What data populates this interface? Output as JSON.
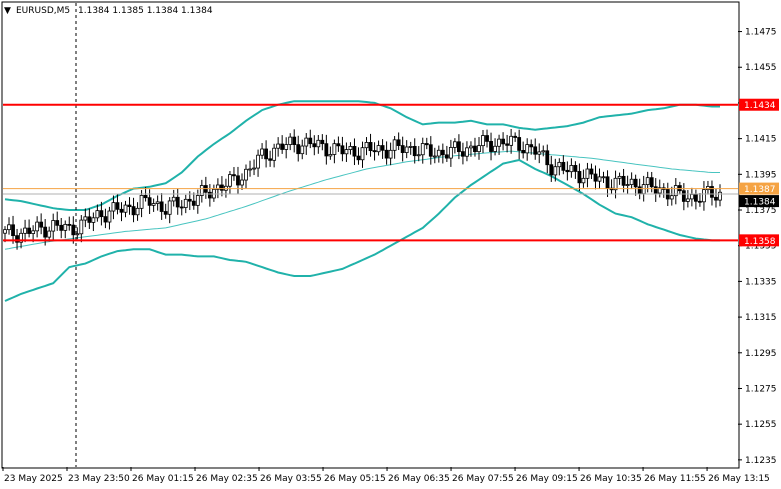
{
  "header": {
    "triangle": "▼",
    "symbol": "EURUSD,M5",
    "ohlc": "1.1384 1.1385 1.1384 1.1384"
  },
  "colors": {
    "background": "#ffffff",
    "frame": "#000000",
    "level_line": "#ff0000",
    "current_line": "#f5a343",
    "bollinger": "#20b2aa",
    "ma": "#48c4c0",
    "candle": "#000000",
    "crosshair": "#000000"
  },
  "chart_data": {
    "type": "candlestick",
    "symbol": "EURUSD",
    "timeframe": "M5",
    "y_axis": {
      "range": [
        1.1231,
        1.1491
      ],
      "ticks": [
        "1.1475",
        "1.1455",
        "1.1435",
        "1.1415",
        "1.1395",
        "1.1375",
        "1.1355",
        "1.1335",
        "1.1315",
        "1.1295",
        "1.1275",
        "1.1255",
        "1.1235"
      ]
    },
    "x_axis": {
      "ticks": [
        "23 May 2025",
        "23 May 23:50",
        "26 May 01:15",
        "26 May 02:35",
        "26 May 03:55",
        "26 May 05:15",
        "26 May 06:35",
        "26 May 07:55",
        "26 May 09:15",
        "26 May 10:35",
        "26 May 11:55",
        "26 May 13:15"
      ]
    },
    "levels": [
      {
        "label": "1.1434",
        "value": 1.1434
      },
      {
        "label": "1.1358",
        "value": 1.1358
      }
    ],
    "current_price": {
      "label": "1.1384",
      "value": 1.1384
    },
    "ask_label": "1.1387",
    "ask_value": 1.1387,
    "close_points": [
      [
        0,
        1.1362
      ],
      [
        4,
        1.1362
      ],
      [
        8,
        1.1364
      ],
      [
        12,
        1.1366
      ],
      [
        16,
        1.1364
      ],
      [
        20,
        1.1368
      ],
      [
        24,
        1.1373
      ],
      [
        28,
        1.1375
      ],
      [
        32,
        1.1377
      ],
      [
        36,
        1.138
      ],
      [
        40,
        1.1376
      ],
      [
        44,
        1.1379
      ],
      [
        48,
        1.1382
      ],
      [
        52,
        1.1387
      ],
      [
        56,
        1.139
      ],
      [
        60,
        1.1396
      ],
      [
        64,
        1.1405
      ],
      [
        68,
        1.141
      ],
      [
        72,
        1.1412
      ],
      [
        76,
        1.1412
      ],
      [
        80,
        1.141
      ],
      [
        84,
        1.1408
      ],
      [
        88,
        1.1408
      ],
      [
        92,
        1.1409
      ],
      [
        96,
        1.1409
      ],
      [
        100,
        1.141
      ],
      [
        104,
        1.1408
      ],
      [
        108,
        1.1407
      ],
      [
        112,
        1.1408
      ],
      [
        116,
        1.141
      ],
      [
        120,
        1.1412
      ],
      [
        124,
        1.1413
      ],
      [
        128,
        1.1412
      ],
      [
        132,
        1.1408
      ],
      [
        136,
        1.14
      ],
      [
        140,
        1.1397
      ],
      [
        144,
        1.1395
      ],
      [
        148,
        1.1392
      ],
      [
        152,
        1.139
      ],
      [
        156,
        1.139
      ],
      [
        160,
        1.1388
      ],
      [
        164,
        1.1386
      ],
      [
        168,
        1.1383
      ],
      [
        172,
        1.1382
      ],
      [
        176,
        1.1384
      ],
      [
        178,
        1.1384
      ]
    ],
    "bollinger_upper": [
      [
        0,
        1.1381
      ],
      [
        4,
        1.138
      ],
      [
        8,
        1.1378
      ],
      [
        12,
        1.1376
      ],
      [
        16,
        1.1375
      ],
      [
        20,
        1.1375
      ],
      [
        24,
        1.1378
      ],
      [
        28,
        1.1383
      ],
      [
        32,
        1.1387
      ],
      [
        36,
        1.1388
      ],
      [
        40,
        1.139
      ],
      [
        44,
        1.1396
      ],
      [
        48,
        1.1405
      ],
      [
        52,
        1.1412
      ],
      [
        56,
        1.1418
      ],
      [
        60,
        1.1425
      ],
      [
        64,
        1.1431
      ],
      [
        68,
        1.1434
      ],
      [
        72,
        1.1436
      ],
      [
        76,
        1.1436
      ],
      [
        80,
        1.1436
      ],
      [
        84,
        1.1436
      ],
      [
        88,
        1.1436
      ],
      [
        92,
        1.1435
      ],
      [
        96,
        1.1432
      ],
      [
        100,
        1.1427
      ],
      [
        104,
        1.1423
      ],
      [
        108,
        1.1424
      ],
      [
        112,
        1.1424
      ],
      [
        116,
        1.1425
      ],
      [
        120,
        1.1423
      ],
      [
        124,
        1.1423
      ],
      [
        128,
        1.1421
      ],
      [
        132,
        1.142
      ],
      [
        136,
        1.1421
      ],
      [
        140,
        1.1422
      ],
      [
        144,
        1.1424
      ],
      [
        148,
        1.1427
      ],
      [
        152,
        1.1428
      ],
      [
        156,
        1.1429
      ],
      [
        160,
        1.1431
      ],
      [
        164,
        1.1432
      ],
      [
        168,
        1.1434
      ],
      [
        172,
        1.1434
      ],
      [
        176,
        1.1433
      ],
      [
        178,
        1.1433
      ]
    ],
    "bollinger_lower": [
      [
        0,
        1.1324
      ],
      [
        4,
        1.1328
      ],
      [
        8,
        1.1331
      ],
      [
        12,
        1.1334
      ],
      [
        16,
        1.1343
      ],
      [
        20,
        1.1345
      ],
      [
        24,
        1.1349
      ],
      [
        28,
        1.1352
      ],
      [
        32,
        1.1353
      ],
      [
        36,
        1.1353
      ],
      [
        40,
        1.135
      ],
      [
        44,
        1.135
      ],
      [
        48,
        1.1349
      ],
      [
        52,
        1.1349
      ],
      [
        56,
        1.1347
      ],
      [
        60,
        1.1346
      ],
      [
        64,
        1.1343
      ],
      [
        68,
        1.134
      ],
      [
        72,
        1.1338
      ],
      [
        76,
        1.1338
      ],
      [
        80,
        1.134
      ],
      [
        84,
        1.1342
      ],
      [
        88,
        1.1346
      ],
      [
        92,
        1.135
      ],
      [
        96,
        1.1355
      ],
      [
        100,
        1.136
      ],
      [
        104,
        1.1365
      ],
      [
        108,
        1.1373
      ],
      [
        112,
        1.1382
      ],
      [
        116,
        1.1389
      ],
      [
        120,
        1.1395
      ],
      [
        124,
        1.1401
      ],
      [
        128,
        1.1403
      ],
      [
        132,
        1.1398
      ],
      [
        136,
        1.1394
      ],
      [
        140,
        1.1389
      ],
      [
        144,
        1.1384
      ],
      [
        148,
        1.1378
      ],
      [
        152,
        1.1373
      ],
      [
        156,
        1.1371
      ],
      [
        160,
        1.1367
      ],
      [
        164,
        1.1364
      ],
      [
        168,
        1.1361
      ],
      [
        172,
        1.1359
      ],
      [
        176,
        1.1358
      ],
      [
        178,
        1.1358
      ]
    ],
    "moving_average": [
      [
        0,
        1.1353
      ],
      [
        10,
        1.1357
      ],
      [
        20,
        1.136
      ],
      [
        30,
        1.1363
      ],
      [
        40,
        1.1365
      ],
      [
        50,
        1.137
      ],
      [
        60,
        1.1377
      ],
      [
        70,
        1.1385
      ],
      [
        80,
        1.1392
      ],
      [
        90,
        1.1398
      ],
      [
        100,
        1.1402
      ],
      [
        110,
        1.1405
      ],
      [
        120,
        1.1407
      ],
      [
        126,
        1.1408
      ],
      [
        136,
        1.1406
      ],
      [
        146,
        1.1404
      ],
      [
        156,
        1.1401
      ],
      [
        166,
        1.1398
      ],
      [
        176,
        1.1396
      ]
    ],
    "n_bars": 178
  }
}
